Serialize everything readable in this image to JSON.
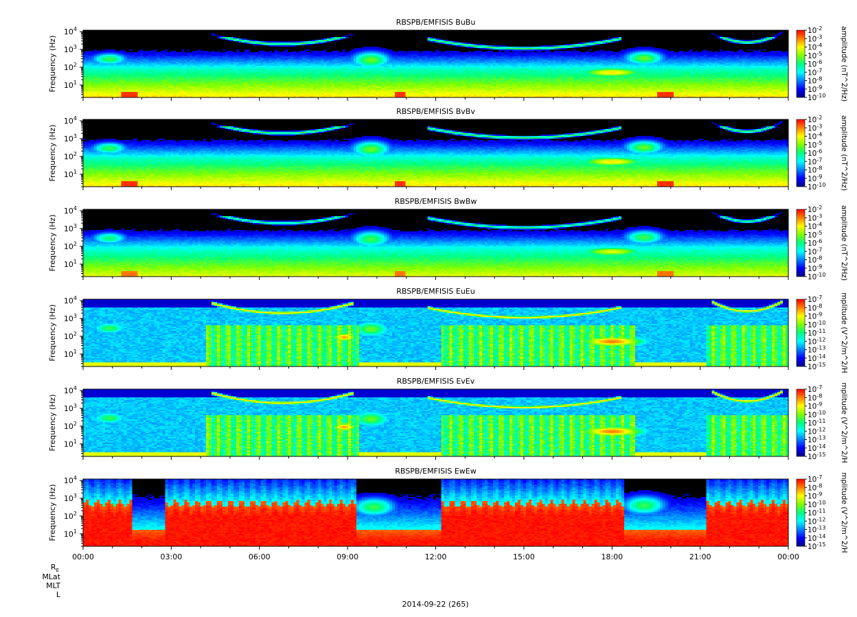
{
  "chart_data": {
    "type": "heatmap",
    "date_label": "2014-09-22 (265)",
    "x_tick_labels": [
      "00:00",
      "03:00",
      "06:00",
      "09:00",
      "12:00",
      "15:00",
      "18:00",
      "21:00",
      "00:00"
    ],
    "x_range_hours": [
      0,
      24
    ],
    "ephemeris_labels": [
      "R_E",
      "MLat",
      "MLT",
      "L"
    ],
    "ephemeris_re": "R",
    "ephemeris_re_sub": "E",
    "panels": [
      {
        "title": "RBSPB/EMFISIS  BuBu",
        "ylabel": "Frequency (Hz)",
        "yscale": "log",
        "ylim_hz": [
          2,
          12000
        ],
        "y_tick_exponents": [
          1,
          2,
          3,
          4
        ],
        "colorbar_label": "amplitude (nT^2/Hz)",
        "colorbar_exponents": [
          -2,
          -3,
          -4,
          -5,
          -6,
          -7,
          -8,
          -9,
          -10
        ],
        "colorbar_range_log": [
          -10,
          -2
        ],
        "kind": "B",
        "variant": 0
      },
      {
        "title": "RBSPB/EMFISIS  BvBv",
        "ylabel": "Frequency (Hz)",
        "yscale": "log",
        "ylim_hz": [
          2,
          12000
        ],
        "y_tick_exponents": [
          1,
          2,
          3,
          4
        ],
        "colorbar_label": "amplitude (nT^2/Hz)",
        "colorbar_exponents": [
          -2,
          -3,
          -4,
          -5,
          -6,
          -7,
          -8,
          -9,
          -10
        ],
        "colorbar_range_log": [
          -10,
          -2
        ],
        "kind": "B",
        "variant": 1
      },
      {
        "title": "RBSPB/EMFISIS  BwBw",
        "ylabel": "Frequency (Hz)",
        "yscale": "log",
        "ylim_hz": [
          2,
          12000
        ],
        "y_tick_exponents": [
          1,
          2,
          3,
          4
        ],
        "colorbar_label": "amplitude (nT^2/Hz)",
        "colorbar_exponents": [
          -2,
          -3,
          -4,
          -5,
          -6,
          -7,
          -8,
          -9,
          -10
        ],
        "colorbar_range_log": [
          -10,
          -2
        ],
        "kind": "B",
        "variant": 2
      },
      {
        "title": "RBSPB/EMFISIS  EuEu",
        "ylabel": "Frequency (Hz)",
        "yscale": "log",
        "ylim_hz": [
          2,
          12000
        ],
        "y_tick_exponents": [
          1,
          2,
          3,
          4
        ],
        "colorbar_label": "mplitude (V^2/m^2/H",
        "colorbar_exponents": [
          -7,
          -8,
          -9,
          -10,
          -11,
          -12,
          -13,
          -14,
          -15
        ],
        "colorbar_range_log": [
          -15,
          -7
        ],
        "kind": "E",
        "variant": 0
      },
      {
        "title": "RBSPB/EMFISIS  EvEv",
        "ylabel": "Frequency (Hz)",
        "yscale": "log",
        "ylim_hz": [
          2,
          12000
        ],
        "y_tick_exponents": [
          1,
          2,
          3,
          4
        ],
        "colorbar_label": "mplitude (V^2/m^2/H",
        "colorbar_exponents": [
          -7,
          -8,
          -9,
          -10,
          -11,
          -12,
          -13,
          -14,
          -15
        ],
        "colorbar_range_log": [
          -15,
          -7
        ],
        "kind": "E",
        "variant": 1
      },
      {
        "title": "RBSPB/EMFISIS  EwEw",
        "ylabel": "Frequency (Hz)",
        "yscale": "log",
        "ylim_hz": [
          2,
          12000
        ],
        "y_tick_exponents": [
          1,
          2,
          3,
          4
        ],
        "colorbar_label": "mplitude (V^2/m^2/H",
        "colorbar_exponents": [
          -7,
          -8,
          -9,
          -10,
          -11,
          -12,
          -13,
          -14,
          -15
        ],
        "colorbar_range_log": [
          -15,
          -7
        ],
        "kind": "Ew",
        "variant": 2
      }
    ],
    "colormap": [
      "#000080",
      "#0000ff",
      "#0080ff",
      "#00ffff",
      "#00ff80",
      "#80ff00",
      "#ffff00",
      "#ff8000",
      "#ff0000"
    ],
    "grid": false,
    "legend": "colorbar-right"
  }
}
